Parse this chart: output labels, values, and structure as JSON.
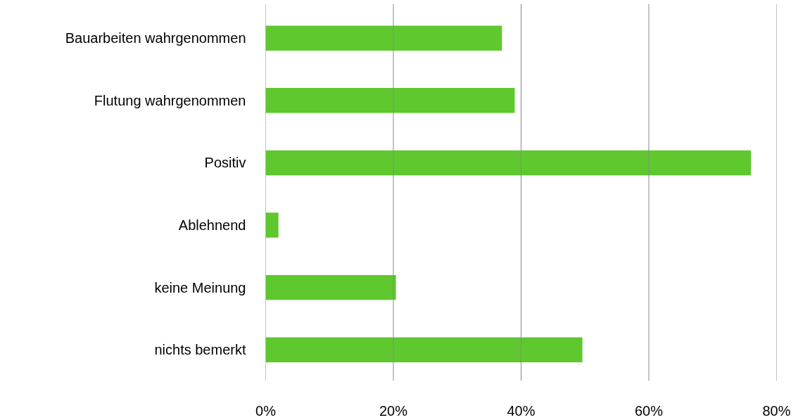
{
  "chart_data": {
    "type": "bar",
    "orientation": "horizontal",
    "categories": [
      "Bauarbeiten wahrgenommen",
      "Flutung wahrgenommen",
      "Positiv",
      "Ablehnend",
      "keine Meinung",
      "nichts bemerkt"
    ],
    "values": [
      37,
      39,
      76,
      2,
      20.4,
      49.6
    ],
    "color": "#5ec82e",
    "xlim": [
      0,
      80
    ],
    "xticks": [
      {
        "value": 0,
        "label": "0%"
      },
      {
        "value": 20,
        "label": "20%"
      },
      {
        "value": 40,
        "label": "40%"
      },
      {
        "value": 60,
        "label": "60%"
      },
      {
        "value": 80,
        "label": "80%"
      }
    ],
    "grid": "x"
  }
}
